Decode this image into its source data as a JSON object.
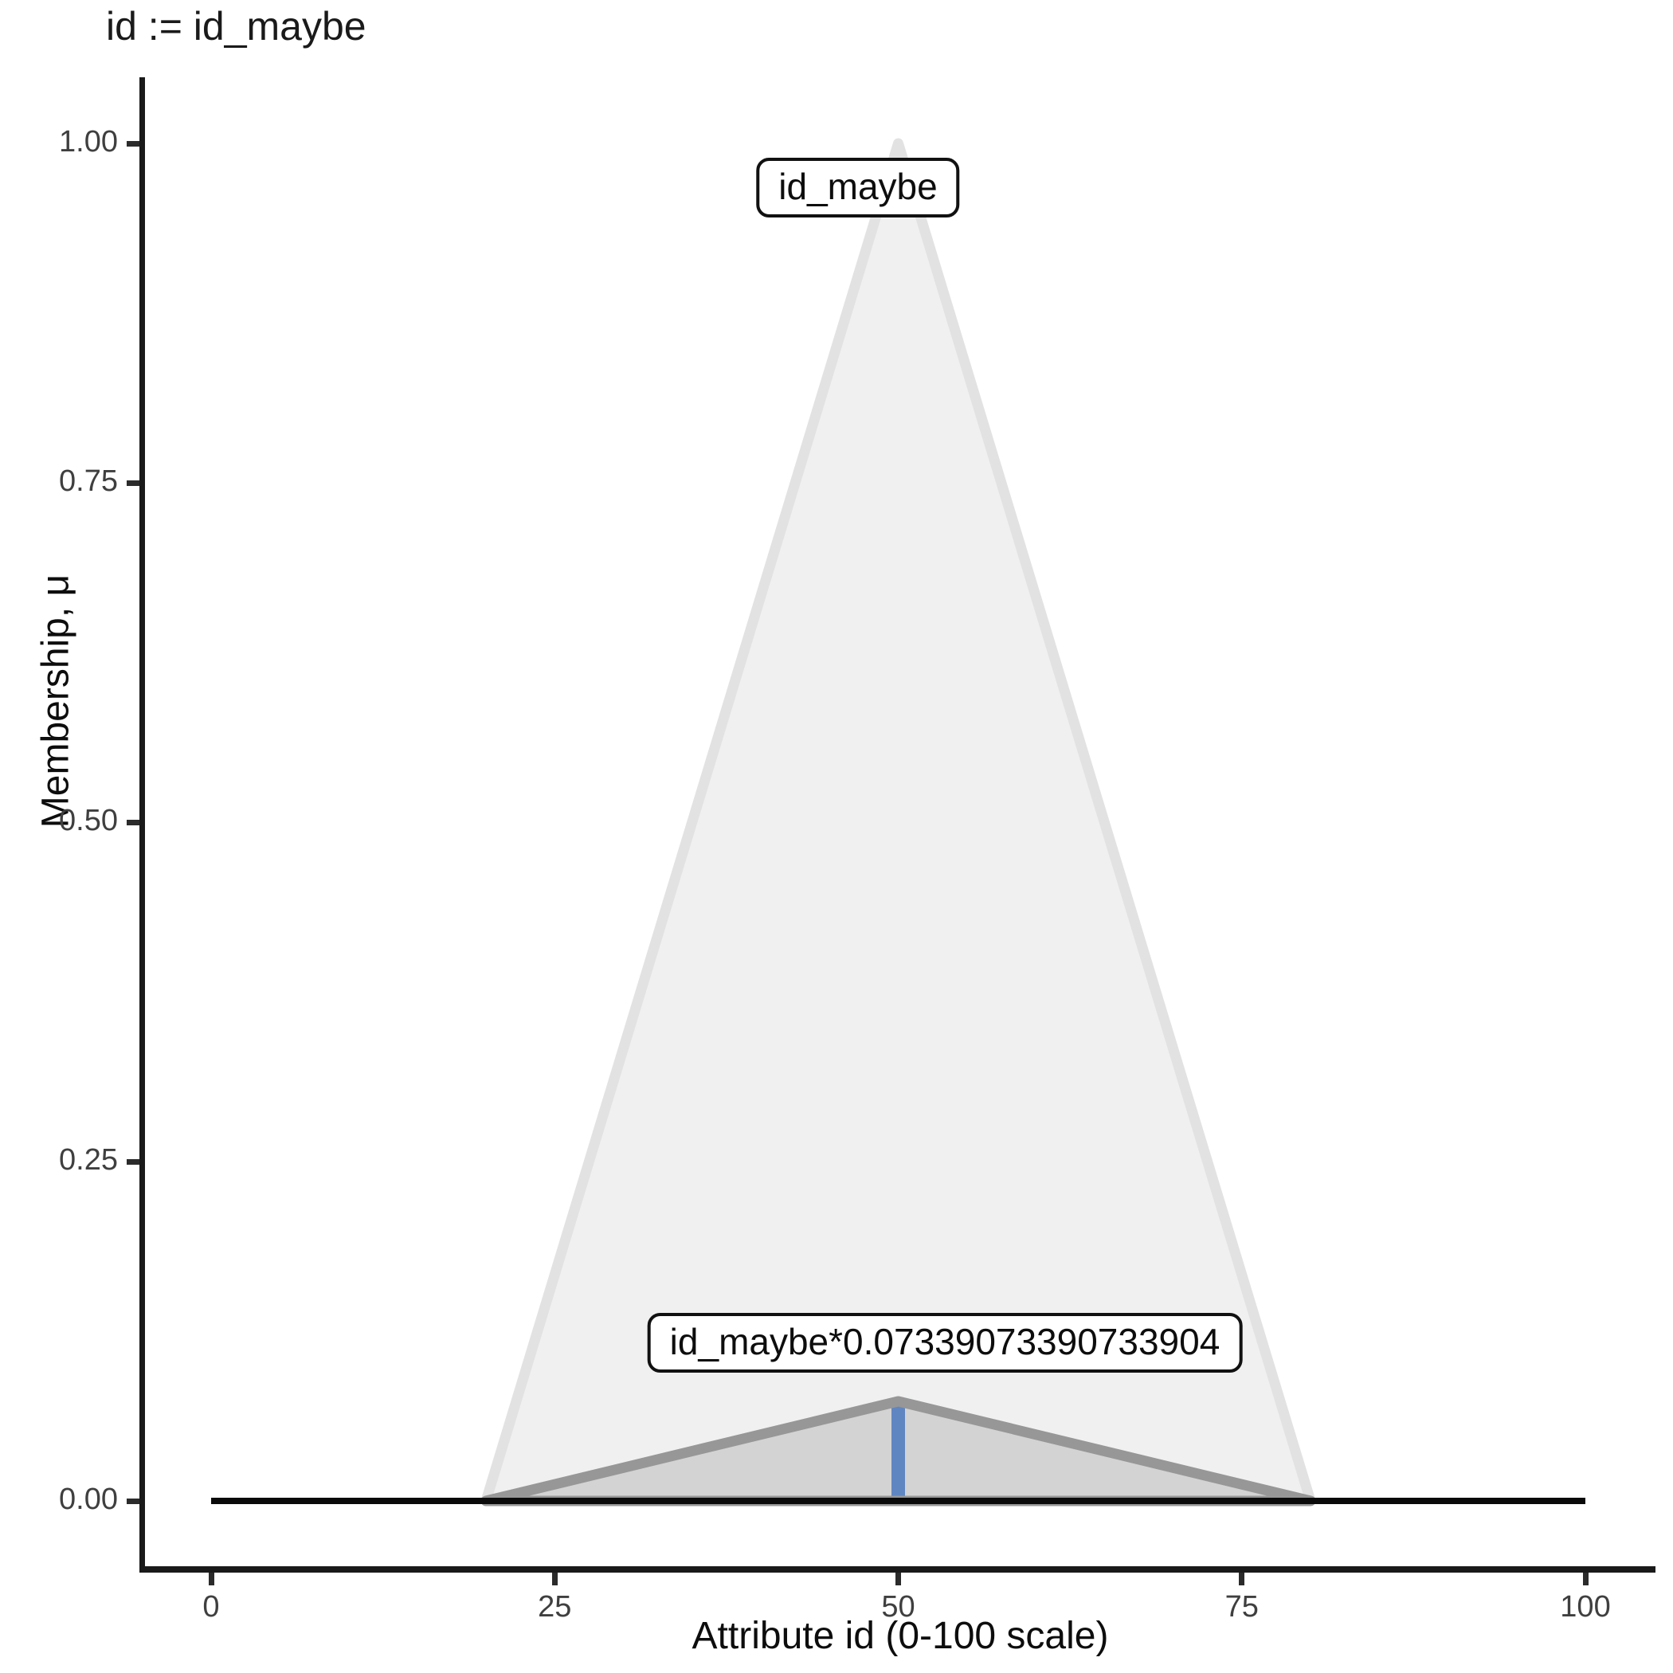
{
  "title": "id := id_maybe",
  "axes": {
    "x_label": "Attribute id (0-100 scale)",
    "y_label": "Membership, μ",
    "x_tick_labels": [
      "0",
      "25",
      "50",
      "75",
      "100"
    ],
    "y_tick_labels": [
      "0.00",
      "0.25",
      "0.50",
      "0.75",
      "1.00"
    ]
  },
  "annotations": {
    "peak_label": "id_maybe",
    "scaled_label": "id_maybe*0.07339073390733904"
  },
  "colors": {
    "background": "#ffffff",
    "spine": "#1a1a1a",
    "tick_label": "#3f3f3f",
    "membership_stroke": "#e2e2e2",
    "membership_fill": "#f0f0f0",
    "scaled_stroke": "#979797",
    "scaled_fill": "#d3d3d3",
    "defuzz_line": "#6086c1",
    "zero_line": "#0a0a0a"
  },
  "chart_data": {
    "type": "area",
    "title": "id := id_maybe",
    "xlabel": "Attribute id (0-100 scale)",
    "ylabel": "Membership, μ",
    "xlim": [
      0,
      100
    ],
    "ylim": [
      0,
      1
    ],
    "grid": false,
    "legend": "none",
    "x_tick_values": [
      0,
      25,
      50,
      75,
      100
    ],
    "y_tick_values": [
      0,
      0.25,
      0.5,
      0.75,
      1
    ],
    "series": [
      {
        "name": "id_maybe",
        "kind": "triangular-membership-function",
        "x": [
          20,
          50,
          80
        ],
        "y": [
          0,
          1,
          0
        ],
        "closed": true,
        "stroke": "#e2e2e2",
        "stroke_width": 13,
        "fill": "#f0f0f0"
      },
      {
        "name": "defuzzified-value-line",
        "kind": "vline",
        "x": [
          50,
          50
        ],
        "y": [
          0,
          0.07339073390733904
        ],
        "closed": false,
        "stroke": "#6086c1",
        "stroke_width": 17,
        "fill": null
      },
      {
        "name": "id_maybe*0.07339073390733904",
        "kind": "triangular-membership-function-scaled",
        "x": [
          20,
          50,
          80
        ],
        "y": [
          0,
          0.07339073390733904,
          0
        ],
        "closed": true,
        "stroke": "#979797",
        "stroke_width": 13,
        "fill": "#d3d3d3"
      },
      {
        "name": "zero-baseline",
        "kind": "hline",
        "x": [
          0,
          100
        ],
        "y": [
          0,
          0
        ],
        "closed": false,
        "stroke": "#0a0a0a",
        "stroke_width": 8,
        "fill": null
      }
    ]
  }
}
